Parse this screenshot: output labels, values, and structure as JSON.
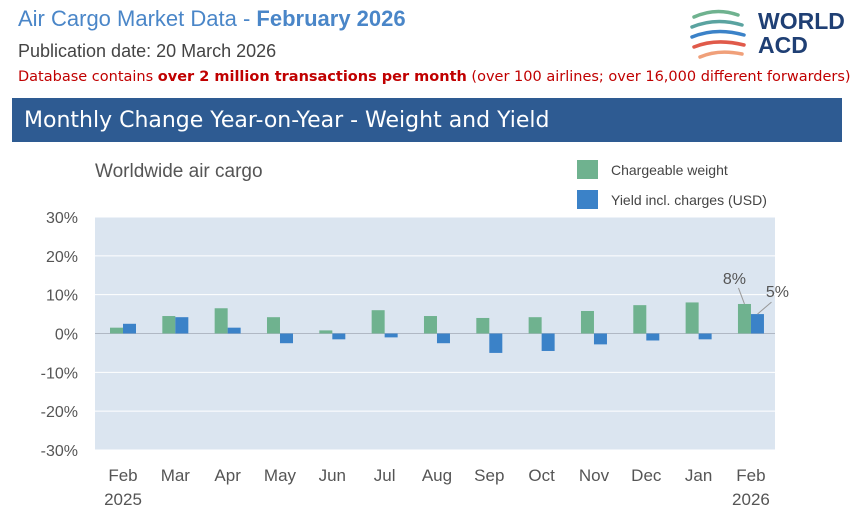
{
  "header": {
    "title_prefix": "Air Cargo Market Data - ",
    "title_period": "February 2026",
    "publication": "Publication date: 20 March 2026",
    "db_prefix": "Database contains ",
    "db_bold": "over 2 million transactions per month",
    "db_suffix": "  (over 100 airlines; over 16,000 different forwarders)"
  },
  "logo": {
    "line1": "WORLD",
    "line2": "ACD"
  },
  "banner": {
    "title": "Monthly Change Year-on-Year - Weight and Yield"
  },
  "colors": {
    "weight": "#6fb28f",
    "yield": "#3b82c8",
    "plot_bg": "#dbe5f0",
    "banner": "#2e5b92"
  },
  "chart_data": {
    "type": "bar",
    "title": "Worldwide air cargo",
    "categories": [
      "Feb",
      "Mar",
      "Apr",
      "May",
      "Jun",
      "Jul",
      "Aug",
      "Sep",
      "Oct",
      "Nov",
      "Dec",
      "Jan",
      "Feb"
    ],
    "category_years": [
      "2025",
      "",
      "",
      "",
      "",
      "",
      "",
      "",
      "",
      "",
      "",
      "",
      "2026"
    ],
    "series": [
      {
        "name": "Chargeable weight",
        "values": [
          1.5,
          4.5,
          6.5,
          4.2,
          0.8,
          6.0,
          4.5,
          4.0,
          4.2,
          5.8,
          7.3,
          8.0,
          7.6
        ]
      },
      {
        "name": "Yield incl. charges (USD)",
        "values": [
          2.5,
          4.2,
          1.5,
          -2.5,
          -1.5,
          -1.0,
          -2.5,
          -5.0,
          -4.5,
          -2.8,
          -1.8,
          -1.5,
          5.0
        ]
      }
    ],
    "annotations": [
      {
        "category_index": 12,
        "series": 0,
        "text": "8%"
      },
      {
        "category_index": 12,
        "series": 1,
        "text": "5%"
      }
    ],
    "yticks": [
      "30%",
      "20%",
      "10%",
      "0%",
      "-10%",
      "-20%",
      "-30%"
    ],
    "ylim": [
      -30,
      30
    ],
    "grid": true,
    "legend": "top-right"
  }
}
